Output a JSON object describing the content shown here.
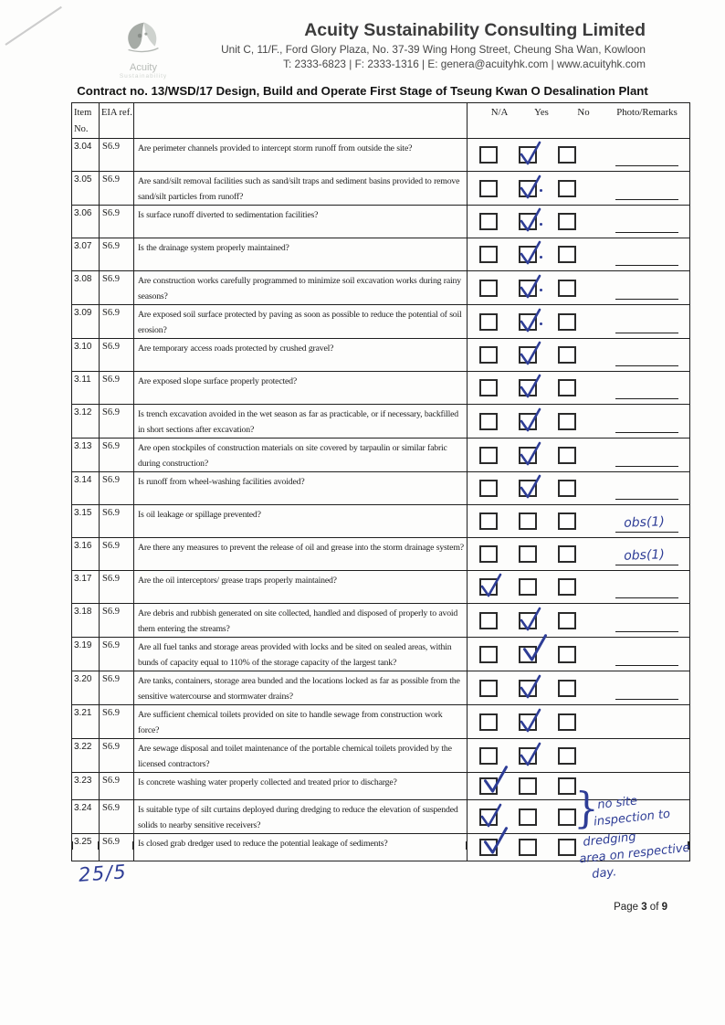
{
  "colors": {
    "ink_blue": "#2e3d96",
    "table_border": "#1f1f1f"
  },
  "letterhead": {
    "company_name": "Acuity Sustainability Consulting Limited",
    "address": "Unit C, 11/F., Ford Glory Plaza, No. 37-39 Wing Hong Street, Cheung Sha Wan, Kowloon",
    "contact_line": "T: 2333-6823 | F: 2333-1316 | E: genera@acuityhk.com | www.acuityhk.com",
    "logo_line1": "Acuity",
    "logo_line2": "Sustainability"
  },
  "contract_title": "Contract no. 13/WSD/17 Design, Build and Operate First Stage of Tseung Kwan O Desalination Plant",
  "table": {
    "columns": {
      "item_line1": "Item",
      "item_line2": "No.",
      "eia_ref": "EIA ref.",
      "na": "N/A",
      "yes": "Yes",
      "no": "No",
      "remarks": "Photo/Remarks"
    },
    "rows": [
      {
        "item": "3.04",
        "ref": "S6.9",
        "question": "Are perimeter channels provided to intercept storm runoff from outside the site?",
        "answer": "yes",
        "remark": "",
        "remark_line": true
      },
      {
        "item": "3.05",
        "ref": "S6.9",
        "question": "Are sand/silt removal facilities such as sand/silt traps and sediment basins provided to remove sand/silt particles from runoff?",
        "answer": "yes",
        "remark": "",
        "remark_line": true,
        "pen_dot": true
      },
      {
        "item": "3.06",
        "ref": "S6.9",
        "question": "Is surface runoff diverted to sedimentation facilities?",
        "answer": "yes",
        "remark": "",
        "remark_line": true,
        "pen_dot": true
      },
      {
        "item": "3.07",
        "ref": "S6.9",
        "question": "Is the drainage system properly maintained?",
        "answer": "yes",
        "remark": "",
        "remark_line": true,
        "pen_dot": true
      },
      {
        "item": "3.08",
        "ref": "S6.9",
        "question": "Are construction works carefully programmed to minimize soil excavation works during rainy seasons?",
        "answer": "yes",
        "remark": "",
        "remark_line": true,
        "pen_dot": true
      },
      {
        "item": "3.09",
        "ref": "S6.9",
        "question": "Are exposed soil surface protected by paving as soon as possible to reduce the potential of soil erosion?",
        "answer": "yes",
        "remark": "",
        "remark_line": true,
        "pen_dot": true
      },
      {
        "item": "3.10",
        "ref": "S6.9",
        "question": "Are temporary access roads protected by crushed gravel?",
        "answer": "yes",
        "remark": "",
        "remark_line": true
      },
      {
        "item": "3.11",
        "ref": "S6.9",
        "question": "Are exposed slope surface properly protected?",
        "answer": "yes",
        "remark": "",
        "remark_line": true
      },
      {
        "item": "3.12",
        "ref": "S6.9",
        "question": "Is trench excavation avoided in the wet season as far as practicable, or if necessary, backfilled in short sections after excavation?",
        "answer": "yes",
        "remark": "",
        "remark_line": true
      },
      {
        "item": "3.13",
        "ref": "S6.9",
        "question": "Are open stockpiles of construction materials on site covered by tarpaulin or similar fabric during construction?",
        "answer": "yes",
        "remark": "",
        "remark_line": true
      },
      {
        "item": "3.14",
        "ref": "S6.9",
        "question": "Is runoff from wheel-washing facilities avoided?",
        "answer": "yes",
        "remark": "",
        "remark_line": true
      },
      {
        "item": "3.15",
        "ref": "S6.9",
        "question": "Is oil leakage or spillage prevented?",
        "answer": "none",
        "remark": "obs(1)",
        "remark_line": true
      },
      {
        "item": "3.16",
        "ref": "S6.9",
        "question": "Are there any measures to prevent the release of oil and grease into the storm drainage system?",
        "answer": "none",
        "remark": "obs(1)",
        "remark_line": true
      },
      {
        "item": "3.17",
        "ref": "S6.9",
        "question": "Are the oil interceptors/ grease traps properly maintained?",
        "answer": "na",
        "remark": "",
        "remark_line": true
      },
      {
        "item": "3.18",
        "ref": "S6.9",
        "question": "Are debris and rubbish generated on site collected, handled and disposed of properly to avoid them entering the streams?",
        "answer": "yes",
        "remark": "",
        "remark_line": true
      },
      {
        "item": "3.19",
        "ref": "S6.9",
        "question": "Are all fuel tanks and storage areas provided with locks and be sited on sealed areas, within bunds of capacity equal to 110% of the storage capacity of the largest tank?",
        "answer": "yes",
        "remark": "",
        "remark_line": true,
        "big_tick": true
      },
      {
        "item": "3.20",
        "ref": "S6.9",
        "question": "Are tanks, containers, storage area bunded and the locations locked as far as possible from the sensitive watercourse and stormwater drains?",
        "answer": "yes",
        "remark": "",
        "remark_line": true
      },
      {
        "item": "3.21",
        "ref": "S6.9",
        "question": "Are sufficient chemical toilets provided on site to handle sewage from construction work force?",
        "answer": "yes",
        "remark": "",
        "remark_line": false
      },
      {
        "item": "3.22",
        "ref": "S6.9",
        "question": "Are sewage disposal and toilet maintenance of the portable chemical toilets provided by the licensed contractors?",
        "answer": "yes",
        "remark": "",
        "remark_line": false
      },
      {
        "item": "3.23",
        "ref": "S6.9",
        "question": "Is concrete washing water properly collected and treated prior to discharge?",
        "answer": "na",
        "remark": "",
        "remark_line": false,
        "big_tick": true
      },
      {
        "item": "3.24",
        "ref": "S6.9",
        "question": "Is suitable type of silt curtains deployed during dredging to reduce the elevation of suspended solids to nearby sensitive receivers?",
        "answer": "na",
        "remark": "",
        "remark_line": false
      },
      {
        "item": "3.25",
        "ref": "S6.9",
        "question": "Is closed grab dredger used to reduce the potential leakage of sediments?",
        "answer": "na",
        "remark": "",
        "remark_line": false,
        "big_tick": true
      }
    ]
  },
  "handwriting": {
    "brace": "}",
    "side_note_lines": [
      "no site",
      "inspection to",
      "dredging",
      "area on respective",
      "day."
    ],
    "date_note": "25/5"
  },
  "footer": {
    "page_word": "Page",
    "page_number": "3",
    "of_word": "of",
    "total_pages": "9"
  }
}
